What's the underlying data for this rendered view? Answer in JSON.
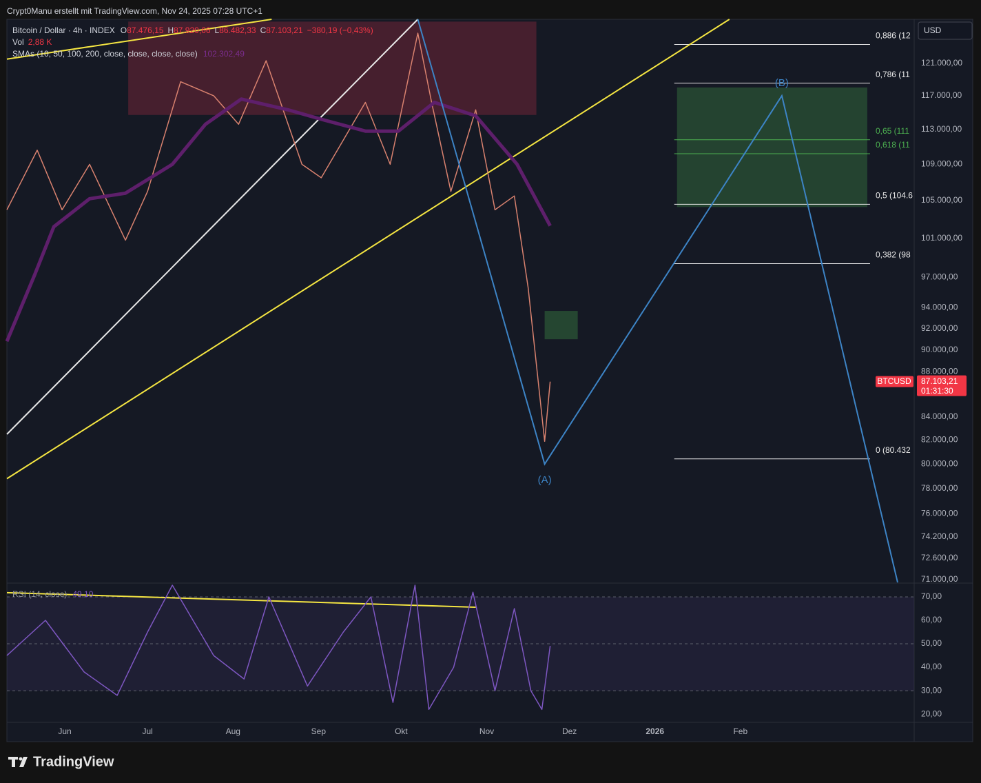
{
  "header": "Crypt0Manu erstellt mit TradingView.com, Nov 24, 2025 07:28 UTC+1",
  "footer_logo": "TradingView",
  "chart_data": [
    {
      "type": "line",
      "title": "Bitcoin / Dollar · 4h · INDEX",
      "ohlc": [
        {
          "key": "O",
          "value": "87.476,15"
        },
        {
          "key": "H",
          "value": "87.920,66"
        },
        {
          "key": "L",
          "value": "86.482,33"
        },
        {
          "key": "C",
          "value": "87.103,21"
        }
      ],
      "change": "−380,19 (−0,43%)",
      "volume": {
        "name": "Vol",
        "value": "2,88 K"
      },
      "currency": "USD",
      "symbol": "BTCUSD",
      "last_price": {
        "value": 87103.21,
        "label": "87.103,21"
      },
      "countdown": "01:31:30",
      "log_scale": true,
      "xlim": [
        "2025-05-11",
        "2026-04-05"
      ],
      "ylim": [
        70800,
        126600
      ],
      "yticks": [
        {
          "value": 121000,
          "label": "121.000,00"
        },
        {
          "value": 117000,
          "label": "117.000,00"
        },
        {
          "value": 113000,
          "label": "113.000,00"
        },
        {
          "value": 109000,
          "label": "109.000,00"
        },
        {
          "value": 105000,
          "label": "105.000,00"
        },
        {
          "value": 101000,
          "label": "101.000,00"
        },
        {
          "value": 97000,
          "label": "97.000,00"
        },
        {
          "value": 94000,
          "label": "94.000,00"
        },
        {
          "value": 92000,
          "label": "92.000,00"
        },
        {
          "value": 90000,
          "label": "90.000,00"
        },
        {
          "value": 88000,
          "label": "88.000,00"
        },
        {
          "value": 84000,
          "label": "84.000,00"
        },
        {
          "value": 82000,
          "label": "82.000,00"
        },
        {
          "value": 80000,
          "label": "80.000,00"
        },
        {
          "value": 78000,
          "label": "78.000,00"
        },
        {
          "value": 76000,
          "label": "76.000,00"
        },
        {
          "value": 74200,
          "label": "74.200,00"
        },
        {
          "value": 72600,
          "label": "72.600,00"
        },
        {
          "value": 71000,
          "label": "71.000,00"
        }
      ],
      "series": [
        {
          "name": "BTCUSD",
          "color": "#d9826f",
          "x": [
            "2025-05-11",
            "2025-05-22",
            "2025-05-31",
            "2025-06-10",
            "2025-06-23",
            "2025-07-01",
            "2025-07-13",
            "2025-07-25",
            "2025-08-03",
            "2025-08-13",
            "2025-08-26",
            "2025-09-02",
            "2025-09-18",
            "2025-09-27",
            "2025-10-07",
            "2025-10-12",
            "2025-10-19",
            "2025-10-28",
            "2025-11-04",
            "2025-11-11",
            "2025-11-16",
            "2025-11-22",
            "2025-11-24"
          ],
          "values": [
            104000,
            110600,
            104000,
            109000,
            100800,
            106000,
            118700,
            117000,
            113600,
            121300,
            109000,
            107500,
            116200,
            109000,
            124800,
            116200,
            106000,
            115300,
            104000,
            105500,
            96000,
            81900,
            87103.21
          ]
        },
        {
          "name": "SMAs (10, 50, 100, 200, close, close, close, close)",
          "color": "#5e1f6b",
          "legend_value": "102.302,49",
          "x": [
            "2025-05-11",
            "2025-05-21",
            "2025-05-28",
            "2025-06-10",
            "2025-06-23",
            "2025-07-10",
            "2025-07-22",
            "2025-08-04",
            "2025-08-21",
            "2025-09-03",
            "2025-09-18",
            "2025-09-30",
            "2025-10-13",
            "2025-10-28",
            "2025-11-12",
            "2025-11-24"
          ],
          "values": [
            90800,
            97200,
            102200,
            105200,
            105800,
            109000,
            113600,
            116600,
            115300,
            114100,
            112800,
            112800,
            116200,
            114600,
            109000,
            102302.49
          ]
        }
      ],
      "zones": [
        {
          "x": [
            "2025-06-24",
            "2025-11-19"
          ],
          "y": [
            114700,
            126300
          ],
          "color": "rgba(130,40,60,0.45)"
        },
        {
          "x": [
            "2026-01-09",
            "2026-03-19"
          ],
          "y": [
            104300,
            118000
          ],
          "color": "rgba(76,175,80,0.28)"
        },
        {
          "x": [
            "2025-11-22",
            "2025-12-04"
          ],
          "y": [
            91000,
            93700
          ],
          "color": "rgba(76,175,80,0.3)"
        }
      ],
      "lines": [
        {
          "color": "#f5e642",
          "x": [
            "2025-05-11",
            "2025-08-15"
          ],
          "values": [
            121500,
            126600
          ]
        },
        {
          "color": "#f5e642",
          "x": [
            "2025-05-11",
            "2026-01-28"
          ],
          "values": [
            78800,
            126600
          ]
        },
        {
          "color": "#e8e8e8",
          "x": [
            "2025-05-11",
            "2025-10-07"
          ],
          "values": [
            82500,
            126600
          ]
        }
      ],
      "fib": {
        "x": [
          "2026-01-08",
          "2026-03-20"
        ],
        "levels": [
          {
            "ratio": 0.886,
            "price": 123350,
            "label": "0,886 (12",
            "color": "#e8e8e8"
          },
          {
            "ratio": 0.786,
            "price": 118530,
            "label": "0,786 (11",
            "color": "#e8e8e8"
          },
          {
            "ratio": 0.65,
            "price": 111800,
            "label": "0,65 (111",
            "color": "#4caf50"
          },
          {
            "ratio": 0.618,
            "price": 110200,
            "label": "0,618 (11",
            "color": "#4caf50"
          },
          {
            "ratio": 0.5,
            "price": 104600,
            "label": "0,5 (104.6",
            "color": "#e8e8e8"
          },
          {
            "ratio": 0.382,
            "price": 98380,
            "label": "0,382 (98",
            "color": "#e8e8e8"
          },
          {
            "ratio": 0,
            "price": 80432,
            "label": "0 (80.432",
            "color": "#e8e8e8"
          }
        ]
      },
      "waves": {
        "color": "#3d84c6",
        "x": [
          "2025-10-07",
          "2025-11-22",
          "2026-02-16",
          "2026-03-30"
        ],
        "values": [
          126600,
          80000,
          117000,
          70800
        ],
        "labels": [
          null,
          "(A)",
          "(B)",
          null
        ]
      }
    },
    {
      "type": "line",
      "xlim": [
        "2025-05-11",
        "2026-04-05"
      ],
      "ylim": [
        16.5,
        75.3
      ],
      "yticks": [
        {
          "value": 70,
          "label": "70,00"
        },
        {
          "value": 60,
          "label": "60,00"
        },
        {
          "value": 50,
          "label": "50,00"
        },
        {
          "value": 40,
          "label": "40,00"
        },
        {
          "value": 30,
          "label": "30,00"
        },
        {
          "value": 20,
          "label": "20,00"
        }
      ],
      "xticks": [
        {
          "value": "2025-06-01",
          "label": "Jun"
        },
        {
          "value": "2025-07-01",
          "label": "Jul"
        },
        {
          "value": "2025-08-01",
          "label": "Aug"
        },
        {
          "value": "2025-09-01",
          "label": "Sep"
        },
        {
          "value": "2025-10-01",
          "label": "Okt"
        },
        {
          "value": "2025-11-01",
          "label": "Nov"
        },
        {
          "value": "2025-12-01",
          "label": "Dez"
        },
        {
          "value": "2026-01-01",
          "label": "2026"
        },
        {
          "value": "2026-02-01",
          "label": "Feb"
        }
      ],
      "band": [
        30,
        70
      ],
      "midline": 50,
      "series": [
        {
          "name": "RSI (14, close)",
          "color": "#7e57c2",
          "legend_value": "49,10",
          "x": [
            "2025-05-11",
            "2025-05-25",
            "2025-06-08",
            "2025-06-20",
            "2025-07-01",
            "2025-07-10",
            "2025-07-25",
            "2025-08-05",
            "2025-08-14",
            "2025-08-28",
            "2025-09-10",
            "2025-09-20",
            "2025-09-28",
            "2025-10-06",
            "2025-10-11",
            "2025-10-20",
            "2025-10-27",
            "2025-11-04",
            "2025-11-11",
            "2025-11-17",
            "2025-11-21",
            "2025-11-24"
          ],
          "values": [
            45,
            60,
            38,
            28,
            55,
            75,
            45,
            35,
            70,
            32,
            55,
            70,
            25,
            75,
            22,
            40,
            72,
            30,
            65,
            30,
            22,
            49.1
          ]
        }
      ],
      "lines": [
        {
          "color": "#f5e642",
          "x": [
            "2025-05-11",
            "2025-10-28"
          ],
          "values": [
            71.8,
            65.6
          ]
        }
      ]
    }
  ]
}
